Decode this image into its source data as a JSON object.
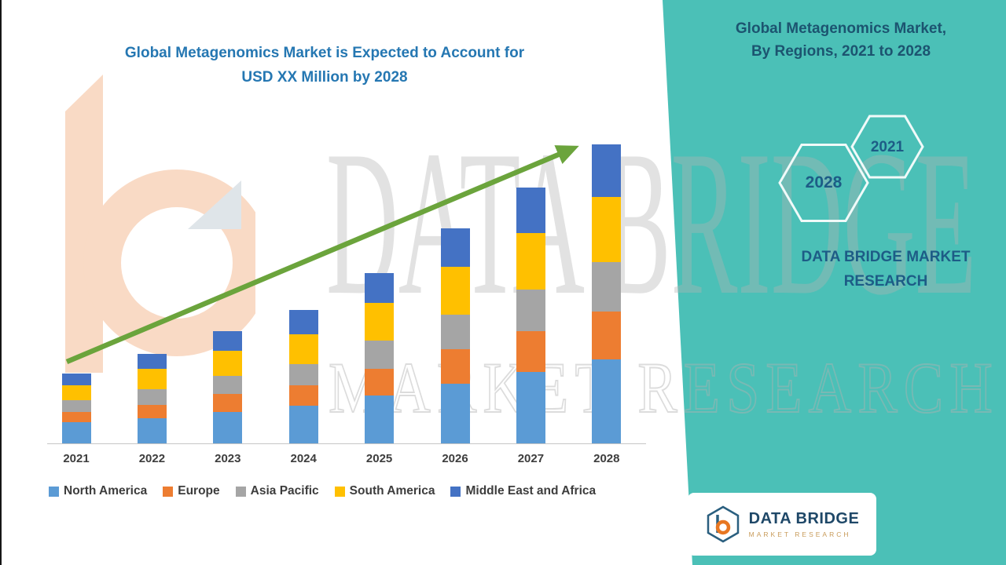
{
  "left_title": {
    "line1": "Global Metagenomics Market is Expected to Account for",
    "line2": "USD XX Million by 2028"
  },
  "right_panel": {
    "title_line1": "Global Metagenomics Market,",
    "title_line2": "By Regions, 2021 to 2028",
    "hex_left": "2028",
    "hex_right": "2021",
    "brand_line1": "DATA BRIDGE MARKET",
    "brand_line2": "RESEARCH"
  },
  "watermark": {
    "line1": "DATA BRIDGE",
    "line2": "MARKET RESEARCH"
  },
  "logo_card": {
    "name": "DATA BRIDGE",
    "tagline": "MARKET RESEARCH"
  },
  "colors": {
    "teal_panel": "#4BC0B7",
    "trend_arrow": "#6BA43C",
    "left_title": "#2577B2",
    "right_title": "#1C5470"
  },
  "chart_data": {
    "type": "bar",
    "stacked": true,
    "title": "Global Metagenomics Market is Expected to Account for USD XX Million by 2028",
    "xlabel": "",
    "ylabel": "",
    "value_axis_visible": false,
    "units": "relative units (chart labels values only as USD XX Million)",
    "ylim": [
      0,
      100
    ],
    "grid": false,
    "legend_position": "bottom",
    "trend_arrow": true,
    "categories": [
      "2021",
      "2022",
      "2023",
      "2024",
      "2025",
      "2026",
      "2027",
      "2028"
    ],
    "series": [
      {
        "name": "North America",
        "color": "#5B9BD5",
        "values": [
          7,
          8.5,
          10.5,
          12.5,
          16,
          20,
          24,
          28
        ]
      },
      {
        "name": "Europe",
        "color": "#ED7D31",
        "values": [
          3.5,
          4.5,
          6,
          7,
          9,
          11.5,
          13.5,
          16
        ]
      },
      {
        "name": "Asia Pacific",
        "color": "#A5A5A5",
        "values": [
          4,
          5,
          6,
          7,
          9.5,
          11.5,
          14,
          16.5
        ]
      },
      {
        "name": "South America",
        "color": "#FFC000",
        "values": [
          5,
          7,
          8.5,
          10,
          12.5,
          16,
          19,
          22
        ]
      },
      {
        "name": "Middle East and Africa",
        "color": "#4472C4",
        "values": [
          4,
          5,
          6.5,
          8,
          10,
          13,
          15,
          17.5
        ]
      }
    ],
    "totals": [
      23.5,
      30,
      37.5,
      44.5,
      57,
      72,
      85.5,
      100
    ]
  }
}
